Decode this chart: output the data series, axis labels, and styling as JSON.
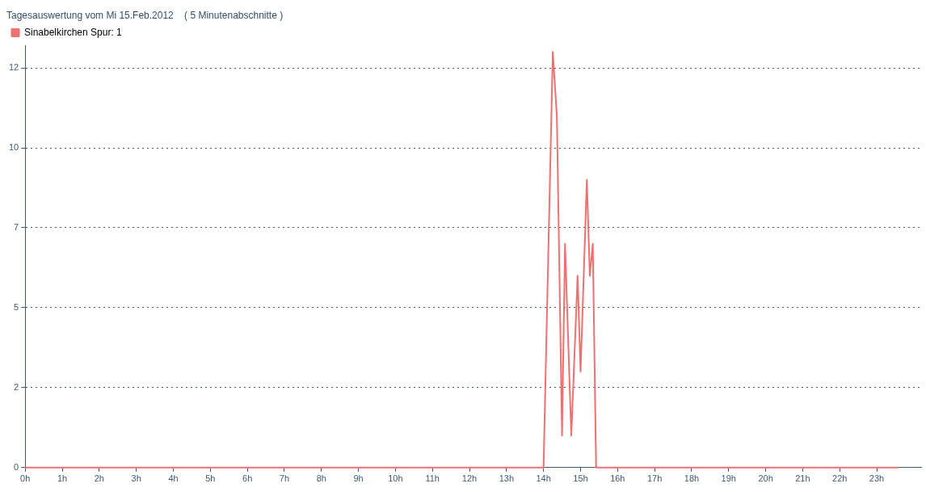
{
  "chart_data": {
    "type": "line",
    "title": "Tagesauswertung vom Mi 15.Feb.2012    ( 5 Minutenabschnitte )",
    "x": [
      0,
      14.0,
      14.25,
      14.36,
      14.5,
      14.58,
      14.75,
      14.92,
      15.0,
      15.17,
      15.25,
      15.33,
      15.42,
      23.58
    ],
    "series": [
      {
        "name": "Sinabelkirchen Spur: 1",
        "color": "#f07070",
        "values": [
          0,
          0,
          13,
          11,
          1,
          7,
          1,
          6,
          3,
          9,
          6,
          7,
          0,
          0
        ]
      }
    ],
    "xlim": [
      0,
      24.2
    ],
    "xticks": [
      {
        "value": 0,
        "label": "0h"
      },
      {
        "value": 1,
        "label": "1h"
      },
      {
        "value": 2,
        "label": "2h"
      },
      {
        "value": 3,
        "label": "3h"
      },
      {
        "value": 4,
        "label": "4h"
      },
      {
        "value": 5,
        "label": "5h"
      },
      {
        "value": 6,
        "label": "6h"
      },
      {
        "value": 7,
        "label": "7h"
      },
      {
        "value": 8,
        "label": "8h"
      },
      {
        "value": 9,
        "label": "9h"
      },
      {
        "value": 10,
        "label": "10h"
      },
      {
        "value": 11,
        "label": "11h"
      },
      {
        "value": 12,
        "label": "12h"
      },
      {
        "value": 13,
        "label": "13h"
      },
      {
        "value": 14,
        "label": "14h"
      },
      {
        "value": 15,
        "label": "15h"
      },
      {
        "value": 16,
        "label": "16h"
      },
      {
        "value": 17,
        "label": "17h"
      },
      {
        "value": 18,
        "label": "18h"
      },
      {
        "value": 19,
        "label": "19h"
      },
      {
        "value": 20,
        "label": "20h"
      },
      {
        "value": 21,
        "label": "21h"
      },
      {
        "value": 22,
        "label": "22h"
      },
      {
        "value": 23,
        "label": "23h"
      }
    ],
    "ylim": [
      0,
      13.2
    ],
    "yticks": [
      0,
      {
        "value": 2.5,
        "label": "2"
      },
      5,
      {
        "value": 7.5,
        "label": "7"
      },
      10,
      {
        "value": 12.5,
        "label": "12"
      }
    ],
    "grid": "y",
    "legend": "top left",
    "marker": "none",
    "line_style": "solid"
  }
}
